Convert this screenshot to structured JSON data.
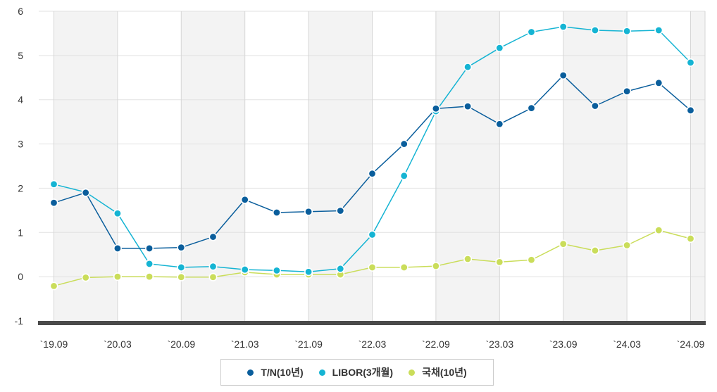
{
  "chart_data": {
    "type": "line",
    "title": "",
    "xlabel": "",
    "ylabel": "",
    "ylim": [
      -1,
      6
    ],
    "yticks": [
      "6",
      "5",
      "4",
      "3",
      "2",
      "1",
      "0",
      "-1"
    ],
    "x_tick_labels": [
      "`19.09",
      "`20.03",
      "`20.09",
      "`21.03",
      "`21.09",
      "`22.03",
      "`22.09",
      "`23.03",
      "`23.09",
      "`24.03",
      "`24.09"
    ],
    "point_count": 21,
    "series": [
      {
        "name": "T/N(10년)",
        "color": "#0a5e9c",
        "values": [
          1.67,
          1.9,
          0.64,
          0.64,
          0.66,
          0.9,
          1.74,
          1.45,
          1.47,
          1.49,
          2.33,
          3.0,
          3.8,
          3.85,
          3.45,
          3.81,
          4.55,
          3.86,
          4.19,
          4.38,
          3.76
        ]
      },
      {
        "name": "LIBOR(3개월)",
        "color": "#15b4d3",
        "values": [
          2.09,
          1.91,
          1.43,
          0.29,
          0.21,
          0.23,
          0.16,
          0.14,
          0.11,
          0.18,
          0.95,
          2.28,
          3.74,
          4.74,
          5.17,
          5.53,
          5.65,
          5.57,
          5.55,
          5.57,
          4.84
        ]
      },
      {
        "name": "국채(10년)",
        "color": "#cadd5a",
        "values": [
          -0.21,
          -0.02,
          0.0,
          0.0,
          -0.01,
          -0.01,
          0.1,
          0.05,
          0.05,
          0.05,
          0.21,
          0.21,
          0.24,
          0.4,
          0.33,
          0.38,
          0.74,
          0.59,
          0.71,
          1.05,
          0.86
        ]
      }
    ],
    "grid": true,
    "legend": "bottom-center"
  }
}
